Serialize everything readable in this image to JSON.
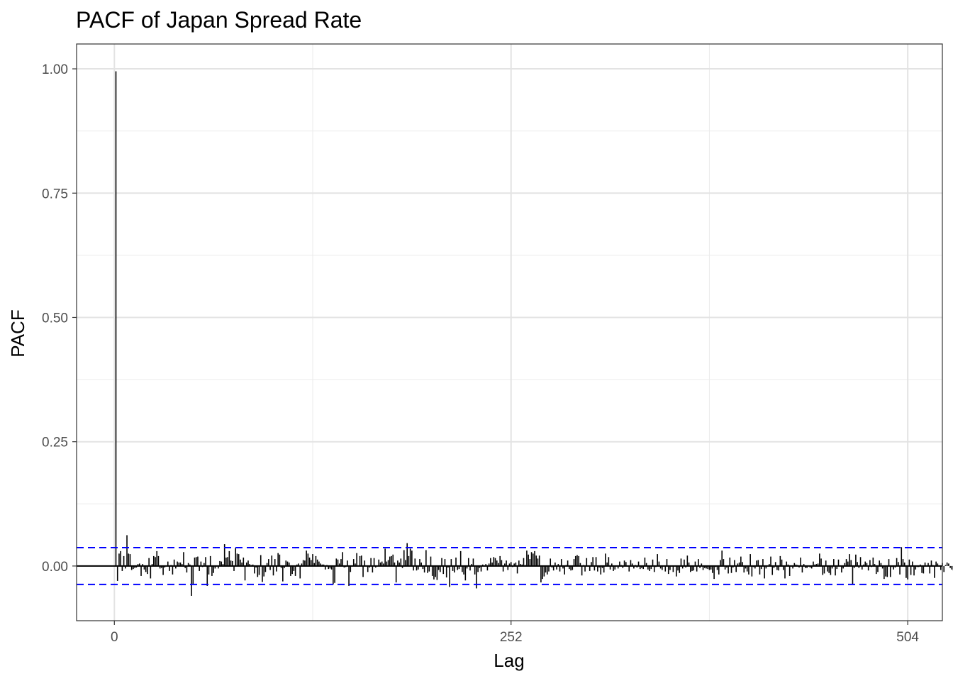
{
  "chart_data": {
    "type": "bar",
    "title": "PACF of Japan Spread Rate",
    "xlabel": "Lag",
    "ylabel": "PACF",
    "xlim": [
      -24,
      526
    ],
    "ylim": [
      -0.11,
      1.05
    ],
    "x_ticks": [
      0,
      252,
      504
    ],
    "x_tick_labels": [
      "0",
      "252",
      "504"
    ],
    "y_ticks": [
      0.0,
      0.25,
      0.5,
      0.75,
      1.0
    ],
    "y_tick_labels": [
      "0.00",
      "0.25",
      "0.50",
      "0.75",
      "1.00"
    ],
    "confidence_bounds": [
      0.037,
      -0.037
    ],
    "grid": true,
    "lag_start": 1,
    "values": [
      0.995,
      -0.03,
      0.025,
      0.03,
      -0.01,
      0.02,
      -0.005,
      0.062,
      0.025,
      0.024,
      -0.008,
      -0.006,
      -0.004,
      -0.003,
      0.004,
      0.005,
      -0.02,
      0.004,
      -0.007,
      -0.012,
      -0.016,
      0.016,
      -0.025,
      0.004,
      0.02,
      0.018,
      0.03,
      0.02,
      -0.005,
      -0.004,
      -0.018,
      -0.003,
      0.001,
      0.009,
      -0.01,
      0.002,
      -0.017,
      0.013,
      -0.005,
      0.009,
      0.007,
      0.007,
      0.004,
      0.028,
      -0.004,
      -0.013,
      0.006,
      0.003,
      -0.06,
      -0.038,
      0.017,
      0.018,
      0.019,
      -0.01,
      0.009,
      -0.002,
      0.006,
      0.018,
      -0.04,
      -0.017,
      0.02,
      -0.02,
      -0.014,
      -0.005,
      -0.001,
      -0.005,
      0.01,
      0.009,
      0.004,
      0.044,
      0.017,
      0.018,
      0.03,
      0.011,
      0.01,
      -0.01,
      0.036,
      0.025,
      0.024,
      0.013,
      0.007,
      0.017,
      -0.029,
      0.007,
      0.011,
      0.004,
      0.002,
      0.003,
      -0.015,
      -0.003,
      -0.022,
      -0.018,
      0.022,
      -0.032,
      -0.021,
      -0.012,
      0.006,
      0.014,
      -0.008,
      0.021,
      -0.019,
      0.014,
      -0.011,
      0.026,
      0.023,
      -0.004,
      -0.031,
      -0.004,
      0.011,
      0.009,
      0.007,
      -0.02,
      -0.016,
      -0.01,
      -0.02,
      0.003,
      0.005,
      -0.025,
      0.005,
      0.012,
      0.011,
      0.031,
      0.025,
      0.017,
      0.012,
      0.024,
      0.006,
      0.02,
      0.013,
      0.009,
      0.005,
      0.003,
      0.003,
      -0.007,
      0.002,
      -0.006,
      -0.005,
      -0.007,
      -0.037,
      -0.034,
      0.015,
      0.013,
      0.005,
      0.014,
      0.028,
      -0.003,
      -0.002,
      0.011,
      -0.04,
      -0.012,
      -0.001,
      0.014,
      0.005,
      0.026,
      0.001,
      0.02,
      0.021,
      -0.022,
      0.011,
      0.001,
      -0.012,
      -0.003,
      0.016,
      -0.013,
      0.016,
      -0.003,
      -0.001,
      0.013,
      0.007,
      0.009,
      0.005,
      0.035,
      0.009,
      0.012,
      0.019,
      0.02,
      0.023,
      0.007,
      -0.033,
      0.011,
      0.007,
      0.015,
      -0.004,
      0.032,
      0.012,
      0.046,
      0.02,
      0.035,
      0.031,
      -0.009,
      0.015,
      -0.009,
      -0.007,
      0.014,
      0.007,
      -0.006,
      -0.013,
      0.032,
      -0.014,
      -0.011,
      0.019,
      -0.02,
      -0.027,
      -0.022,
      -0.028,
      -0.008,
      -0.012,
      0.016,
      -0.016,
      0.014,
      -0.023,
      -0.003,
      -0.042,
      0.014,
      -0.01,
      -0.013,
      0.017,
      -0.008,
      -0.006,
      0.03,
      -0.012,
      -0.017,
      -0.029,
      -0.005,
      0.016,
      -0.009,
      0.004,
      0.015,
      -0.017,
      -0.045,
      -0.012,
      -0.004,
      -0.011,
      0.003,
      -0.001,
      0.004,
      -0.009,
      0.005,
      0.016,
      0.007,
      0.018,
      0.016,
      0.011,
      0.006,
      0.02,
      0.012,
      -0.011,
      0.005,
      0.011,
      -0.008,
      0.005,
      0.008,
      -0.002,
      0.005,
      0.007,
      -0.015,
      0.011,
      0.004,
      0.003,
      0.016,
      0.002,
      0.031,
      0.023,
      0.014,
      0.028,
      0.025,
      0.03,
      0.021,
      0.015,
      0.021,
      -0.033,
      -0.026,
      -0.021,
      -0.013,
      -0.017,
      -0.011,
      0.015,
      -0.003,
      -0.009,
      0.007,
      -0.007,
      0.004,
      -0.011,
      0.014,
      -0.005,
      -0.017,
      0.002,
      0.011,
      -0.006,
      -0.009,
      -0.008,
      0.014,
      0.02,
      0.022,
      0.02,
      0.006,
      -0.019,
      0.002,
      -0.011,
      0.016,
      -0.001,
      -0.01,
      0.008,
      0.018,
      -0.009,
      0.018,
      -0.011,
      -0.003,
      -0.017,
      -0.004,
      -0.013,
      0.025,
      0.007,
      0.018,
      -0.007,
      0.005,
      -0.01,
      -0.007,
      0.001,
      -0.005,
      0.009,
      0.002,
      -0.004,
      0.011,
      0.008,
      -0.001,
      -0.011,
      0.012,
      0.005,
      -0.005,
      0.002,
      -0.003,
      0.009,
      -0.006,
      -0.004,
      -0.006,
      0.017,
      0.006,
      -0.007,
      -0.01,
      -0.006,
      0.013,
      -0.012,
      -0.002,
      0.024,
      0.009,
      -0.005,
      -0.008,
      0.001,
      -0.011,
      0.014,
      -0.016,
      -0.008,
      -0.001,
      -0.012,
      0.001,
      -0.021,
      -0.009,
      -0.014,
      0.015,
      -0.005,
      0.013,
      -0.003,
      0.021,
      0.007,
      -0.012,
      -0.01,
      -0.009,
      0.009,
      -0.011,
      0.014,
      -0.004,
      0.005,
      -0.008,
      -0.004,
      -0.005,
      -0.006,
      -0.008,
      -0.007,
      -0.014,
      -0.026,
      -0.002,
      -0.008,
      -0.017,
      0.012,
      0.031,
      0.014,
      -0.007,
      -0.003,
      -0.015,
      0.017,
      -0.014,
      -0.003,
      0.012,
      -0.012,
      0.005,
      0.007,
      0.019,
      0.008,
      -0.013,
      -0.005,
      -0.011,
      -0.017,
      0.024,
      -0.021,
      -0.002,
      -0.005,
      0.011,
      0.012,
      -0.017,
      -0.006,
      0.014,
      -0.025,
      -0.005,
      0.001,
      0.004,
      0.019,
      -0.018,
      -0.004,
      0.008,
      -0.008,
      -0.009,
      0.02,
      0.013,
      -0.008,
      -0.025,
      0.009,
      0.003,
      -0.02,
      -0.001,
      -0.005,
      0.006,
      0.003,
      0.002,
      -0.003,
      0.017,
      -0.013,
      0.004,
      -0.004,
      -0.004,
      0.001,
      -0.003,
      -0.005,
      0.009,
      0.003,
      0.004,
      0.005,
      0.025,
      0.015,
      -0.018,
      -0.015,
      0.011,
      -0.011,
      -0.014,
      -0.018,
      -0.005,
      0.014,
      -0.019,
      -0.006,
      0.013,
      0.001,
      -0.013,
      -0.005,
      0.006,
      0.014,
      0.009,
      0.024,
      0.012,
      -0.036,
      -0.004,
      0.023,
      0.008,
      -0.004,
      0.018,
      -0.007,
      0.003,
      0.009,
      0.006,
      -0.009,
      0.012,
      -0.002,
      0.017,
      0.004,
      -0.016,
      -0.012,
      0.011,
      0.006,
      -0.005,
      -0.026,
      -0.021,
      -0.022,
      0.014,
      -0.022,
      -0.002,
      -0.007,
      -0.003,
      0.016,
      0.008,
      -0.017,
      0.038,
      0.014,
      0.007,
      -0.024,
      -0.027,
      0.013,
      -0.018,
      0.009,
      -0.019,
      -0.007,
      -0.002,
      -0.002,
      0.003,
      -0.014,
      -0.015,
      0.007,
      0.001,
      0.006,
      -0.015,
      0.011,
      0.002,
      -0.024,
      0.009,
      0.005,
      0.001,
      -0.008,
      0.006,
      -0.012,
      0.002,
      0.007,
      0.005,
      -0.004,
      -0.007,
      -0.009,
      0.008,
      -0.008,
      -0.012,
      0.021,
      0.011,
      -0.015,
      0.01
    ]
  }
}
